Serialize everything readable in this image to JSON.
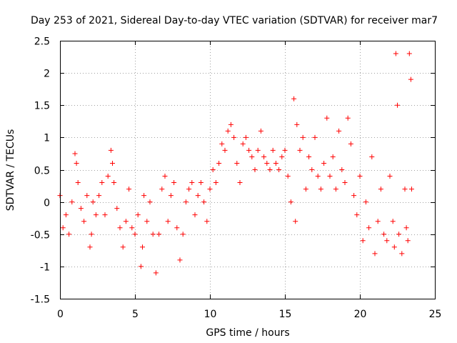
{
  "chart_data": {
    "type": "scatter",
    "title": "Day 253 of 2021, Sidereal Day-to-day VTEC variation (SDTVAR) for receiver mar7",
    "xlabel": "GPS time / hours",
    "ylabel": "SDTVAR / TECUs",
    "xlim": [
      0,
      25
    ],
    "ylim": [
      -1.5,
      2.5
    ],
    "xticks": [
      "0",
      "5",
      "10",
      "15",
      "20",
      "25"
    ],
    "yticks": [
      "-1.5",
      "-1",
      "-0.5",
      "0",
      "0.5",
      "1",
      "1.5",
      "2",
      "2.5"
    ],
    "grid": true,
    "marker": "+",
    "series": [
      {
        "name": "SDTVAR",
        "color": "#ff0000",
        "x": [
          0.0,
          0.2,
          0.4,
          0.6,
          0.8,
          1.0,
          1.1,
          1.2,
          1.4,
          1.6,
          1.8,
          2.0,
          2.1,
          2.2,
          2.4,
          2.6,
          2.8,
          3.0,
          3.2,
          3.4,
          3.5,
          3.6,
          3.8,
          4.0,
          4.2,
          4.4,
          4.6,
          4.8,
          5.0,
          5.2,
          5.4,
          5.5,
          5.6,
          5.8,
          6.0,
          6.2,
          6.4,
          6.6,
          6.8,
          7.0,
          7.2,
          7.4,
          7.6,
          7.8,
          8.0,
          8.2,
          8.4,
          8.6,
          8.8,
          9.0,
          9.2,
          9.4,
          9.6,
          9.8,
          10.0,
          10.2,
          10.4,
          10.6,
          10.8,
          11.0,
          11.2,
          11.4,
          11.6,
          11.8,
          12.0,
          12.2,
          12.4,
          12.6,
          12.8,
          13.0,
          13.2,
          13.4,
          13.6,
          13.8,
          14.0,
          14.2,
          14.4,
          14.6,
          14.8,
          15.0,
          15.2,
          15.4,
          15.6,
          15.7,
          15.8,
          16.0,
          16.2,
          16.4,
          16.6,
          16.8,
          17.0,
          17.2,
          17.4,
          17.6,
          17.8,
          18.0,
          18.2,
          18.4,
          18.6,
          18.8,
          19.0,
          19.2,
          19.4,
          19.6,
          19.8,
          20.0,
          20.2,
          20.4,
          20.6,
          20.8,
          21.0,
          21.2,
          21.4,
          21.6,
          21.8,
          22.0,
          22.2,
          22.3,
          22.4,
          22.5,
          22.6,
          22.8,
          23.0,
          23.1,
          23.2,
          23.3,
          23.4,
          23.45
        ],
        "y": [
          0.1,
          -0.4,
          -0.2,
          -0.5,
          0.0,
          0.75,
          0.6,
          0.3,
          -0.1,
          -0.3,
          0.1,
          -0.7,
          -0.5,
          0.0,
          -0.2,
          0.1,
          0.3,
          -0.2,
          0.4,
          0.8,
          0.6,
          0.3,
          -0.1,
          -0.4,
          -0.7,
          -0.3,
          0.2,
          -0.4,
          -0.5,
          -0.2,
          -1.0,
          -0.7,
          0.1,
          -0.3,
          0.0,
          -0.5,
          -1.1,
          -0.5,
          0.2,
          0.4,
          -0.3,
          0.1,
          0.3,
          -0.4,
          -0.9,
          -0.5,
          0.0,
          0.2,
          0.3,
          -0.2,
          0.1,
          0.3,
          0.0,
          -0.3,
          0.2,
          0.5,
          0.3,
          0.6,
          0.9,
          0.8,
          1.1,
          1.2,
          1.0,
          0.6,
          0.3,
          0.9,
          1.0,
          0.8,
          0.7,
          0.5,
          0.8,
          1.1,
          0.7,
          0.6,
          0.5,
          0.8,
          0.6,
          0.5,
          0.7,
          0.8,
          0.4,
          0.0,
          1.6,
          -0.3,
          1.2,
          0.8,
          1.0,
          0.2,
          0.7,
          0.5,
          1.0,
          0.4,
          0.2,
          0.6,
          1.3,
          0.4,
          0.7,
          0.2,
          1.1,
          0.5,
          0.3,
          1.3,
          0.9,
          0.1,
          -0.2,
          0.4,
          -0.6,
          0.0,
          -0.4,
          0.7,
          -0.8,
          -0.3,
          0.2,
          -0.5,
          -0.6,
          0.4,
          -0.3,
          -0.7,
          2.3,
          1.5,
          -0.5,
          -0.8,
          0.2,
          -0.4,
          -0.6,
          2.3,
          1.9,
          0.2
        ]
      }
    ]
  }
}
